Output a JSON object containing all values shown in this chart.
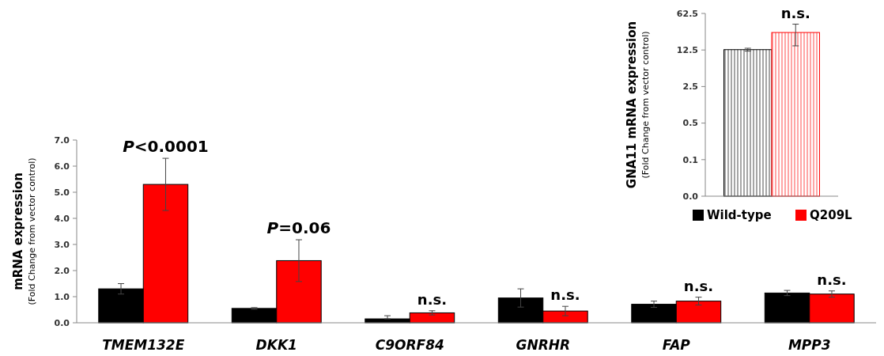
{
  "chart_data": [
    {
      "type": "bar",
      "ylabel": "mRNA expression$_{(Fold Change from vector control)}$",
      "categories": [
        "TMEM132E",
        "DKK1",
        "C9ORF84",
        "GNRHR",
        "FAP",
        "MPP3"
      ],
      "series": [
        {
          "color": "#000000",
          "values": [
            1.3,
            0.55,
            0.15,
            0.95,
            0.71,
            1.14
          ],
          "errors": [
            0.2,
            0.03,
            [
              0.15,
              0.27
            ],
            0.35,
            0.12,
            0.1
          ]
        },
        {
          "color": "#ff0000",
          "values": [
            5.3,
            2.38,
            0.38,
            0.45,
            0.83,
            1.1
          ],
          "errors": [
            1.0,
            0.8,
            0.08,
            0.18,
            0.15,
            0.12
          ]
        }
      ],
      "ylim": [
        0,
        7
      ],
      "yticks": [
        {
          "value": 0,
          "label": "0.0"
        },
        {
          "value": 1,
          "label": "1.0"
        },
        {
          "value": 2,
          "label": "2.0"
        },
        {
          "value": 3,
          "label": "3.0"
        },
        {
          "value": 4,
          "label": "4.0"
        },
        {
          "value": 5,
          "label": "5.0"
        },
        {
          "value": 6,
          "label": "6.0"
        },
        {
          "value": 7,
          "label": "7.0"
        }
      ],
      "annotations": [
        "P<0.0001",
        "P=0.06",
        "n.s.",
        "n.s.",
        "n.s.",
        "n.s."
      ]
    },
    {
      "type": "bar",
      "ylabel": "GNA11 mRNA expression$_{(Fold Change from vector control)}$",
      "categories": [
        null
      ],
      "log": true,
      "series": [
        {
          "name": "Wild-type",
          "color": "#000000",
          "values": [
            12.7
          ],
          "errors": [
            0.8
          ]
        },
        {
          "name": "Q209L",
          "color": "#ff0000",
          "values": [
            27
          ],
          "errors": [
            12
          ]
        }
      ],
      "ylim": [
        0.02,
        62.5
      ],
      "yticks": [
        {
          "value": 0.02,
          "label": "0.0"
        },
        0.1,
        0.5,
        2.5,
        12.5,
        62.5
      ],
      "legend": "bottom",
      "annotations": [
        "n.s."
      ]
    }
  ]
}
